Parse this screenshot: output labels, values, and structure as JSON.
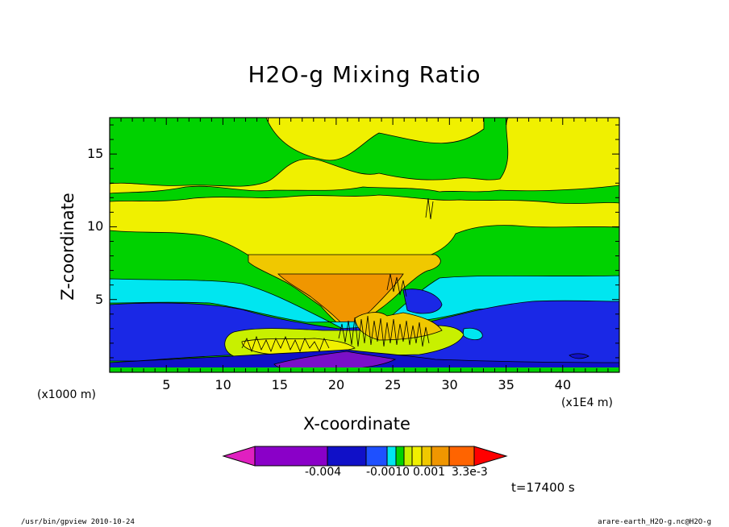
{
  "chart_data": {
    "type": "contour",
    "title": "H2O-g Mixing Ratio",
    "xlabel": "X-coordinate",
    "ylabel": "Z-coordinate",
    "x_unit_note": "(x1E4 m)",
    "y_unit_note": "(x1000 m)",
    "x_ticks": [
      5,
      10,
      15,
      20,
      25,
      30,
      35,
      40
    ],
    "y_ticks": [
      5,
      10,
      15
    ],
    "xlim": [
      0,
      45
    ],
    "ylim": [
      0,
      17.5
    ],
    "colorbar": {
      "colors": [
        "#e020c0",
        "#8a00c8",
        "#7a10c8",
        "#1010c8",
        "#1a28e6",
        "#1e78ff",
        "#00e6f0",
        "#00d200",
        "#c8f000",
        "#f0f000",
        "#f0c800",
        "#f09600",
        "#ff6400",
        "#ff0000"
      ],
      "labels": [
        "-0.004",
        "-0.0010",
        "0.001",
        "3.3e-3"
      ]
    },
    "time_label": "t=17400 s",
    "footer_left": "/usr/bin/gpview  2010-10-24",
    "footer_right": "arare-earth_H2O-g.nc@H2O-g"
  }
}
